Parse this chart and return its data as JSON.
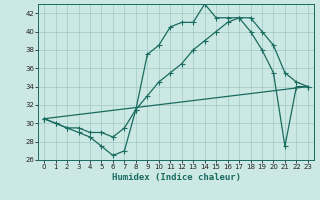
{
  "xlabel": "Humidex (Indice chaleur)",
  "bg_color": "#cce8e4",
  "grid_color": "#a0c8c4",
  "line_color": "#1a6b60",
  "spine_color": "#1a6b60",
  "xlim": [
    -0.5,
    23.5
  ],
  "ylim": [
    26,
    43
  ],
  "xticks": [
    0,
    1,
    2,
    3,
    4,
    5,
    6,
    7,
    8,
    9,
    10,
    11,
    12,
    13,
    14,
    15,
    16,
    17,
    18,
    19,
    20,
    21,
    22,
    23
  ],
  "yticks": [
    26,
    28,
    30,
    32,
    34,
    36,
    38,
    40,
    42
  ],
  "line1_x": [
    0,
    1,
    2,
    3,
    4,
    5,
    6,
    7,
    8,
    9,
    10,
    11,
    12,
    13,
    14,
    15,
    16,
    17,
    18,
    19,
    20,
    21,
    22,
    23
  ],
  "line1_y": [
    30.5,
    30.0,
    29.5,
    29.0,
    28.5,
    27.5,
    26.5,
    27.0,
    31.5,
    37.5,
    38.5,
    40.5,
    41.0,
    41.0,
    43.0,
    41.5,
    41.5,
    41.5,
    40.0,
    38.0,
    35.5,
    27.5,
    34.0,
    34.0
  ],
  "line2_x": [
    0,
    1,
    2,
    3,
    4,
    5,
    6,
    7,
    8,
    9,
    10,
    11,
    12,
    13,
    14,
    15,
    16,
    17,
    18,
    19,
    20,
    21,
    22,
    23
  ],
  "line2_y": [
    30.5,
    30.0,
    29.5,
    29.5,
    29.0,
    29.0,
    28.5,
    29.5,
    31.5,
    33.0,
    34.5,
    35.5,
    36.5,
    38.0,
    39.0,
    40.0,
    41.0,
    41.5,
    41.5,
    40.0,
    38.5,
    35.5,
    34.5,
    34.0
  ],
  "line3_x": [
    0,
    23
  ],
  "line3_y": [
    30.5,
    34.0
  ],
  "xlabel_fontsize": 6.5,
  "tick_fontsize": 5.0,
  "linewidth": 0.9,
  "markersize": 2.0
}
